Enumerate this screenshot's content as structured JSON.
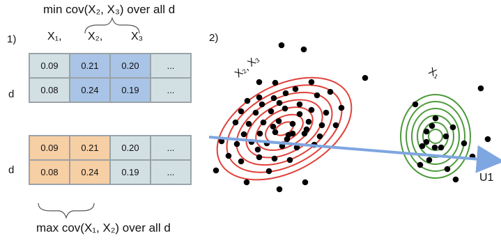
{
  "captions": {
    "top": "min cov(X₂, X₃) over all d",
    "bottom": "max cov(X₁, X₂) over all d"
  },
  "panel_labels": {
    "first": "1)",
    "second": "2)"
  },
  "columns": [
    "X₁,",
    "X₂,",
    "X₃"
  ],
  "row_label": "d",
  "table_top": {
    "rows": [
      [
        "0.09",
        "0.21",
        "0.20",
        "..."
      ],
      [
        "0.08",
        "0.24",
        "0.19",
        "..."
      ]
    ],
    "colors": [
      [
        "grey",
        "blue",
        "blue",
        "grey"
      ],
      [
        "grey",
        "blue",
        "blue",
        "grey"
      ]
    ]
  },
  "table_bottom": {
    "rows": [
      [
        "0.09",
        "0.21",
        "0.20",
        "..."
      ],
      [
        "0.08",
        "0.24",
        "0.19",
        "..."
      ]
    ],
    "colors": [
      [
        "orange",
        "orange",
        "grey",
        "grey"
      ],
      [
        "orange",
        "orange",
        "grey",
        "grey"
      ]
    ]
  },
  "clusters": {
    "left_label": "X₂, X₃",
    "right_label": "X₁",
    "left_color": "#e0413a",
    "right_color": "#4d9a3b"
  },
  "arrow": {
    "label": "U1",
    "color": "#7ea6e0"
  }
}
